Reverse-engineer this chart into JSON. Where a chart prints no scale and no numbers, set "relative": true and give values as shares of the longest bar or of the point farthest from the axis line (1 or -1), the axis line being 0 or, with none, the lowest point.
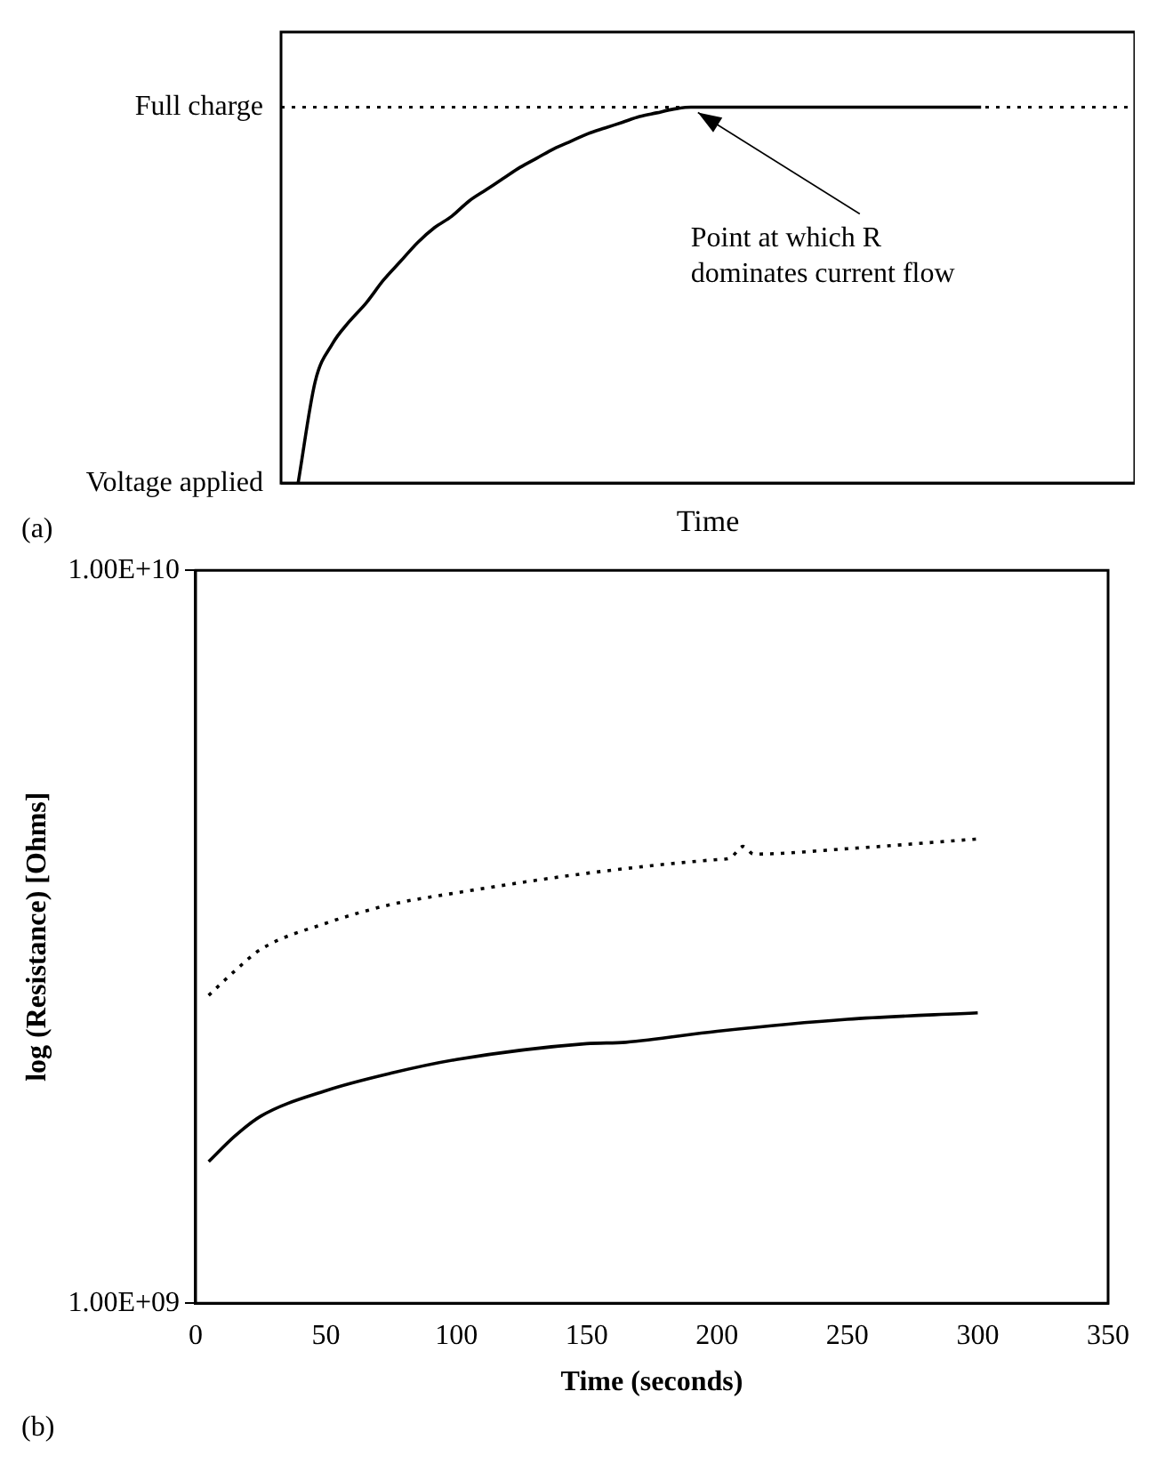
{
  "chart_data": [
    {
      "type": "line",
      "relative": true,
      "xlabel": "Time",
      "categories": [
        null,
        null,
        null,
        null,
        null,
        null,
        null,
        null,
        null,
        null,
        null,
        null,
        null,
        null,
        null,
        null,
        null,
        null,
        null,
        null,
        null,
        null,
        null,
        null,
        null,
        null,
        null,
        null,
        null,
        null,
        null,
        null,
        null,
        null,
        null,
        null,
        null,
        null,
        null,
        null,
        null,
        null,
        null,
        null,
        null,
        null,
        null,
        null,
        null,
        null,
        null
      ],
      "series": [
        {
          "color": "#000000",
          "values": [
            null,
            0,
            0.27,
            0.37,
            0.43,
            0.48,
            0.54,
            0.59,
            0.64,
            0.68,
            0.71,
            0.75,
            0.78,
            0.81,
            0.84,
            0.865,
            0.89,
            0.91,
            0.93,
            0.945,
            0.96,
            0.975,
            0.985,
            0.995,
            1,
            1,
            1,
            1,
            1,
            1,
            1,
            1,
            1,
            1,
            1,
            1,
            1,
            1,
            1,
            1,
            1,
            1,
            null,
            null,
            null,
            null,
            null,
            null,
            null,
            null,
            null
          ]
        }
      ],
      "ref_lines": [
        {
          "axis": "y",
          "value": 1,
          "label": "Full charge",
          "line_style": "dotted"
        },
        {
          "axis": "y",
          "value": 0,
          "label": "Voltage applied",
          "line_style": "solid"
        }
      ],
      "annotations": [
        "(a)",
        "Point at which R dominates current flow"
      ]
    },
    {
      "type": "line",
      "xlabel": "Time (seconds)",
      "ylabel": "log (Resistance) [Ohms]",
      "log": "y",
      "xlim": [
        0,
        350
      ],
      "xticks": [
        0,
        50,
        100,
        150,
        200,
        250,
        300,
        350
      ],
      "ylim": [
        1000000000,
        10000000000
      ],
      "yticks": [
        {
          "value": 1000000000,
          "label": "1.00E+09"
        },
        {
          "value": 10000000000,
          "label": "1.00E+10"
        }
      ],
      "series": [
        {
          "color": "#000000",
          "line_style": "dotted",
          "x": [
            5,
            15,
            25,
            50,
            75,
            100,
            150,
            200,
            205,
            210,
            214,
            250,
            300
          ],
          "values": [
            2630000000,
            2840000000,
            3040000000,
            3300000000,
            3500000000,
            3630000000,
            3860000000,
            4030000000,
            4050000000,
            4200000000,
            4100000000,
            4170000000,
            4300000000
          ]
        },
        {
          "color": "#000000",
          "line_style": "solid",
          "x": [
            5,
            15,
            25,
            50,
            75,
            100,
            150,
            165,
            200,
            250,
            300
          ],
          "values": [
            1560000000,
            1690000000,
            1800000000,
            1950000000,
            2060000000,
            2150000000,
            2260000000,
            2270000000,
            2350000000,
            2440000000,
            2490000000
          ]
        }
      ],
      "annotations": [
        "(b)"
      ]
    }
  ]
}
